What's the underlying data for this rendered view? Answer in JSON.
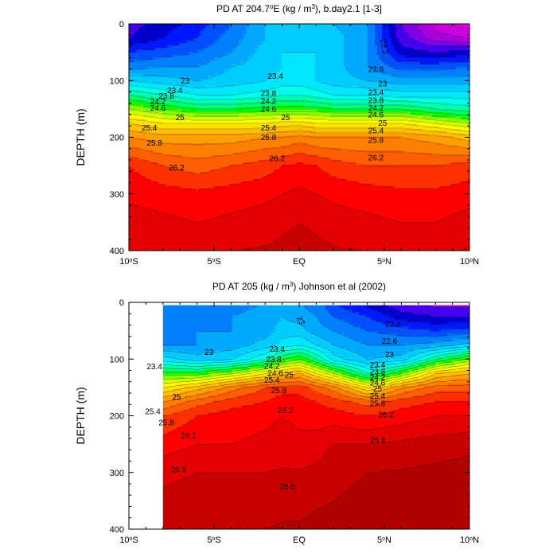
{
  "chart_data": [
    {
      "type": "contour",
      "title": "PD AT 204.7",
      "title_sup": "o",
      "title_mid": "E (kg / m",
      "title_sup2": "3",
      "title_end": "), b.day2.1 [1-3]",
      "ylabel": "DEPTH (m)",
      "xlim": [
        -10,
        10
      ],
      "ylim": [
        400,
        0
      ],
      "y_ticks": [
        "0",
        "100",
        "200",
        "300",
        "400"
      ],
      "x_ticks": [
        {
          "base": "10",
          "sup": "o",
          "hemi": "S"
        },
        {
          "base": "5",
          "sup": "o",
          "hemi": "S"
        },
        {
          "base": "EQ",
          "sup": "",
          "hemi": ""
        },
        {
          "base": "5",
          "sup": "o",
          "hemi": "N"
        },
        {
          "base": "10",
          "sup": "o",
          "hemi": "N"
        }
      ],
      "levels": [
        21.2,
        21.4,
        21.6,
        21.8,
        22,
        22.2,
        22.4,
        22.6,
        22.8,
        23,
        23.2,
        23.4,
        23.6,
        23.8,
        24,
        24.2,
        24.4,
        24.6,
        24.8,
        25,
        25.2,
        25.4,
        25.6,
        25.8,
        26,
        26.2,
        26.4,
        26.6,
        26.8
      ],
      "x": [
        -10,
        -8,
        -6,
        -4,
        -2,
        -1,
        0,
        1,
        2,
        4,
        6,
        8,
        10
      ],
      "depth": [
        0,
        25,
        50,
        75,
        100,
        125,
        150,
        175,
        200,
        250,
        300,
        350,
        400
      ],
      "values": [
        [
          22.1,
          22.3,
          22.5,
          22.8,
          23.2,
          23.3,
          23.2,
          23.2,
          23.2,
          23.0,
          22.0,
          21.5,
          21.3
        ],
        [
          22.2,
          22.4,
          22.6,
          22.9,
          23.2,
          23.4,
          23.3,
          23.3,
          23.3,
          23.0,
          22.1,
          21.7,
          21.6
        ],
        [
          22.6,
          22.7,
          22.8,
          23.0,
          23.3,
          23.4,
          23.4,
          23.4,
          23.3,
          23.0,
          22.3,
          22.2,
          22.3
        ],
        [
          22.9,
          23.0,
          23.0,
          23.2,
          23.3,
          23.4,
          23.5,
          23.4,
          23.3,
          23.0,
          22.7,
          22.7,
          22.8
        ],
        [
          23.4,
          23.3,
          23.2,
          23.3,
          23.4,
          23.5,
          23.5,
          23.4,
          23.3,
          23.2,
          23.1,
          23.1,
          23.1
        ],
        [
          24.0,
          23.8,
          23.6,
          23.6,
          23.7,
          23.8,
          23.8,
          23.7,
          23.6,
          23.6,
          23.5,
          23.5,
          23.5
        ],
        [
          24.6,
          24.4,
          24.2,
          24.2,
          24.3,
          24.3,
          24.3,
          24.3,
          24.2,
          24.2,
          24.2,
          24.0,
          23.9
        ],
        [
          25.2,
          25.0,
          25.0,
          25.0,
          25.0,
          25.1,
          25.1,
          25.0,
          25.0,
          25.0,
          25.0,
          24.8,
          24.6
        ],
        [
          25.6,
          25.5,
          25.5,
          25.5,
          25.6,
          25.6,
          25.7,
          25.6,
          25.6,
          25.6,
          25.6,
          25.5,
          25.3
        ],
        [
          26.2,
          26.0,
          25.9,
          26.0,
          26.1,
          26.2,
          26.25,
          26.2,
          26.1,
          26.0,
          26.0,
          26.0,
          26.1
        ],
        [
          26.35,
          26.3,
          26.25,
          26.3,
          26.35,
          26.4,
          26.45,
          26.4,
          26.35,
          26.3,
          26.25,
          26.25,
          26.3
        ],
        [
          26.5,
          26.45,
          26.4,
          26.45,
          26.5,
          26.55,
          26.6,
          26.55,
          26.5,
          26.45,
          26.4,
          26.4,
          26.5
        ],
        [
          26.6,
          26.6,
          26.55,
          26.6,
          26.62,
          26.66,
          26.7,
          26.66,
          26.62,
          26.6,
          26.55,
          26.55,
          26.62
        ]
      ],
      "labels": [
        {
          "text": "23",
          "x": -6.7,
          "d": 100
        },
        {
          "text": "23.4",
          "x": -7.3,
          "d": 117
        },
        {
          "text": "23.8",
          "x": -7.8,
          "d": 127
        },
        {
          "text": "24.2",
          "x": -8.3,
          "d": 137
        },
        {
          "text": "24.6",
          "x": -8.3,
          "d": 148
        },
        {
          "text": "25",
          "x": -7.0,
          "d": 165
        },
        {
          "text": "25.4",
          "x": -8.8,
          "d": 183
        },
        {
          "text": "25.8",
          "x": -8.5,
          "d": 210
        },
        {
          "text": "26.2",
          "x": -7.2,
          "d": 253
        },
        {
          "text": "23.4",
          "x": -1.4,
          "d": 92
        },
        {
          "text": "23.8",
          "x": -1.8,
          "d": 122
        },
        {
          "text": "24.2",
          "x": -1.8,
          "d": 136
        },
        {
          "text": "24.6",
          "x": -1.8,
          "d": 150
        },
        {
          "text": "25",
          "x": -0.8,
          "d": 165
        },
        {
          "text": "25.4",
          "x": -1.8,
          "d": 183
        },
        {
          "text": "25.8",
          "x": -1.8,
          "d": 200
        },
        {
          "text": "26.2",
          "x": -1.3,
          "d": 237
        },
        {
          "text": "22.6",
          "x": 4.5,
          "d": 80
        },
        {
          "text": "23",
          "x": 4.9,
          "d": 105
        },
        {
          "text": "23.4",
          "x": 4.5,
          "d": 121
        },
        {
          "text": "23.8",
          "x": 4.5,
          "d": 135
        },
        {
          "text": "24.2",
          "x": 4.5,
          "d": 148
        },
        {
          "text": "24.6",
          "x": 4.5,
          "d": 160
        },
        {
          "text": "25",
          "x": 4.9,
          "d": 175
        },
        {
          "text": "25.4",
          "x": 4.5,
          "d": 188
        },
        {
          "text": "25.8",
          "x": 4.5,
          "d": 205
        },
        {
          "text": "26.2",
          "x": 4.5,
          "d": 236
        },
        {
          "text": "22.2",
          "x": 5.0,
          "d": 40,
          "rotate": 80
        }
      ]
    },
    {
      "type": "contour",
      "title": "PD AT 205 (kg / m",
      "title_sup": "3",
      "title_end": ") Johnson et al (2002)",
      "ylabel": "DEPTH (m)",
      "xlim": [
        -10,
        10
      ],
      "ylim": [
        400,
        0
      ],
      "data_x_start": -8.0,
      "data_depth_start": 5,
      "y_ticks": [
        "0",
        "100",
        "200",
        "300",
        "400"
      ],
      "x_ticks": [
        {
          "base": "10",
          "sup": "o",
          "hemi": "S"
        },
        {
          "base": "5",
          "sup": "o",
          "hemi": "S"
        },
        {
          "base": "EQ",
          "sup": "",
          "hemi": ""
        },
        {
          "base": "5",
          "sup": "o",
          "hemi": "N"
        },
        {
          "base": "10",
          "sup": "o",
          "hemi": "N"
        }
      ],
      "levels": [
        21.2,
        21.4,
        21.6,
        21.8,
        22,
        22.2,
        22.4,
        22.6,
        22.8,
        23,
        23.2,
        23.4,
        23.6,
        23.8,
        24,
        24.2,
        24.4,
        24.6,
        24.8,
        25,
        25.2,
        25.4,
        25.6,
        25.8,
        26,
        26.2,
        26.4,
        26.6,
        26.8
      ],
      "x": [
        -8,
        -6,
        -4,
        -2,
        -1,
        0,
        1,
        2,
        4,
        6,
        8,
        10
      ],
      "depth": [
        0,
        25,
        50,
        75,
        100,
        125,
        150,
        175,
        200,
        250,
        300,
        350,
        400
      ],
      "values": [
        [
          22.8,
          22.9,
          22.9,
          23.0,
          23.0,
          23.0,
          22.9,
          22.6,
          22.3,
          22.0,
          21.9,
          21.9
        ],
        [
          22.9,
          22.9,
          23.0,
          23.1,
          23.2,
          23.1,
          23.0,
          22.8,
          22.6,
          22.3,
          22.2,
          22.2
        ],
        [
          22.9,
          23.0,
          23.0,
          23.1,
          23.3,
          23.3,
          23.1,
          23.0,
          22.8,
          22.7,
          22.6,
          22.7
        ],
        [
          23.0,
          23.0,
          23.1,
          23.3,
          23.5,
          23.6,
          23.4,
          23.2,
          23.0,
          23.0,
          23.1,
          23.3
        ],
        [
          23.5,
          23.3,
          23.4,
          23.8,
          24.2,
          24.4,
          24.0,
          23.5,
          23.2,
          23.3,
          24.0,
          24.5
        ],
        [
          24.3,
          24.3,
          24.6,
          25.0,
          25.3,
          25.4,
          25.0,
          24.6,
          23.8,
          24.4,
          25.2,
          25.4
        ],
        [
          25.0,
          25.3,
          25.7,
          26.0,
          26.1,
          26.1,
          25.9,
          25.7,
          25.0,
          25.6,
          25.9,
          25.9
        ],
        [
          25.6,
          25.9,
          26.1,
          26.2,
          26.3,
          26.3,
          26.2,
          26.1,
          25.9,
          26.1,
          26.2,
          26.2
        ],
        [
          26.0,
          26.2,
          26.3,
          26.35,
          26.4,
          26.35,
          26.3,
          26.3,
          26.2,
          26.3,
          26.4,
          26.4
        ],
        [
          26.3,
          26.4,
          26.4,
          26.45,
          26.5,
          26.45,
          26.5,
          26.6,
          26.6,
          26.65,
          26.7,
          26.75
        ],
        [
          26.55,
          26.6,
          26.6,
          26.6,
          26.62,
          26.62,
          26.65,
          26.75,
          26.8,
          26.82,
          26.85,
          26.88
        ],
        [
          26.65,
          26.7,
          26.7,
          26.72,
          26.75,
          26.75,
          26.78,
          26.8,
          26.85,
          26.88,
          26.9,
          26.92
        ],
        [
          26.72,
          26.76,
          26.78,
          26.8,
          26.82,
          26.82,
          26.85,
          26.88,
          26.9,
          26.92,
          26.95,
          26.97
        ]
      ],
      "labels": [
        {
          "text": "23",
          "x": -5.3,
          "d": 88
        },
        {
          "text": "23.4",
          "x": -8.5,
          "d": 113
        },
        {
          "text": "23.4",
          "x": -1.3,
          "d": 82
        },
        {
          "text": "23.8",
          "x": -1.5,
          "d": 100
        },
        {
          "text": "24.2",
          "x": -1.6,
          "d": 112
        },
        {
          "text": "24.6",
          "x": -1.4,
          "d": 125
        },
        {
          "text": "25",
          "x": -0.6,
          "d": 128
        },
        {
          "text": "25.4",
          "x": -1.6,
          "d": 137
        },
        {
          "text": "25.8",
          "x": -1.2,
          "d": 155
        },
        {
          "text": "25",
          "x": -7.2,
          "d": 167
        },
        {
          "text": "25.4",
          "x": -8.6,
          "d": 192
        },
        {
          "text": "25.8",
          "x": -7.8,
          "d": 212
        },
        {
          "text": "26.2",
          "x": -6.5,
          "d": 235
        },
        {
          "text": "26.2",
          "x": -0.8,
          "d": 190
        },
        {
          "text": "23",
          "x": 0.1,
          "d": 32,
          "rotate": 60
        },
        {
          "text": "22.2",
          "x": 5.5,
          "d": 38
        },
        {
          "text": "22.6",
          "x": 5.3,
          "d": 68
        },
        {
          "text": "23",
          "x": 5.3,
          "d": 92
        },
        {
          "text": "23.4",
          "x": 4.6,
          "d": 110
        },
        {
          "text": "23.8",
          "x": 4.6,
          "d": 122
        },
        {
          "text": "24.2",
          "x": 4.6,
          "d": 132
        },
        {
          "text": "24.6",
          "x": 4.6,
          "d": 142
        },
        {
          "text": "25",
          "x": 4.6,
          "d": 152
        },
        {
          "text": "25.4",
          "x": 4.6,
          "d": 165
        },
        {
          "text": "25.8",
          "x": 4.6,
          "d": 178
        },
        {
          "text": "26.2",
          "x": 5.1,
          "d": 198
        },
        {
          "text": "26.6",
          "x": 4.6,
          "d": 243
        },
        {
          "text": "26.6",
          "x": -7.1,
          "d": 295
        },
        {
          "text": "26.6",
          "x": -0.7,
          "d": 325
        }
      ]
    }
  ]
}
